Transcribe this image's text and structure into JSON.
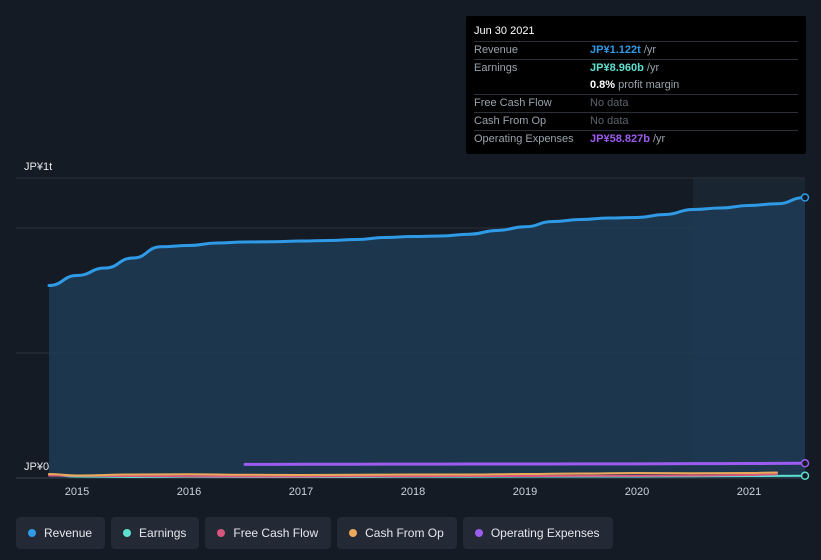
{
  "tooltip": {
    "date": "Jun 30 2021",
    "rows": [
      {
        "label": "Revenue",
        "value": "JP¥1.122t",
        "unit": " /yr",
        "color": "#2f9ae6"
      },
      {
        "label": "Earnings",
        "value": "JP¥8.960b",
        "unit": " /yr",
        "color": "#5ee0cf"
      },
      {
        "label": "",
        "value": "0.8%",
        "unit": " profit margin",
        "color": "#ffffff"
      },
      {
        "label": "Free Cash Flow",
        "value": "No data",
        "unit": "",
        "color": "#5c636c"
      },
      {
        "label": "Cash From Op",
        "value": "No data",
        "unit": "",
        "color": "#5c636c"
      },
      {
        "label": "Operating Expenses",
        "value": "JP¥58.827b",
        "unit": " /yr",
        "color": "#9d5cf0"
      }
    ]
  },
  "legend": [
    {
      "label": "Revenue",
      "color": "#2f9ae6"
    },
    {
      "label": "Earnings",
      "color": "#5ee0cf"
    },
    {
      "label": "Free Cash Flow",
      "color": "#d8567e"
    },
    {
      "label": "Cash From Op",
      "color": "#e8a95a"
    },
    {
      "label": "Operating Expenses",
      "color": "#9d5cf0"
    }
  ],
  "chart_data": {
    "type": "area",
    "ytick_labels": [
      "JP¥1t",
      "JP¥0"
    ],
    "ylim": [
      0,
      1.2
    ],
    "xlim": [
      2014.6,
      2021.5
    ],
    "x_ticks": [
      2015,
      2016,
      2017,
      2018,
      2019,
      2020,
      2021
    ],
    "highlight_from": 2020.5,
    "grid": true,
    "legend_position": "bottom",
    "series": [
      {
        "name": "Revenue",
        "color": "#2f9ae6",
        "fill": true,
        "x": [
          2014.75,
          2015.0,
          2015.25,
          2015.5,
          2015.75,
          2016.0,
          2016.25,
          2016.5,
          2016.75,
          2017.0,
          2017.25,
          2017.5,
          2017.75,
          2018.0,
          2018.25,
          2018.5,
          2018.75,
          2019.0,
          2019.25,
          2019.5,
          2019.75,
          2020.0,
          2020.25,
          2020.5,
          2020.75,
          2021.0,
          2021.25,
          2021.5
        ],
        "y": [
          0.77,
          0.81,
          0.84,
          0.88,
          0.925,
          0.93,
          0.94,
          0.944,
          0.945,
          0.948,
          0.95,
          0.954,
          0.962,
          0.966,
          0.968,
          0.975,
          0.99,
          1.005,
          1.026,
          1.034,
          1.04,
          1.042,
          1.054,
          1.074,
          1.08,
          1.09,
          1.097,
          1.122
        ]
      },
      {
        "name": "Earnings",
        "color": "#5ee0cf",
        "x": [
          2014.75,
          2015.0,
          2015.5,
          2016.0,
          2016.5,
          2017.0,
          2017.5,
          2018.0,
          2018.5,
          2019.0,
          2019.5,
          2020.0,
          2020.5,
          2021.0,
          2021.5
        ],
        "y": [
          0.012,
          0.006,
          0.004,
          0.005,
          0.004,
          0.004,
          0.004,
          0.005,
          0.005,
          0.006,
          0.006,
          0.006,
          0.007,
          0.008,
          0.00896
        ]
      },
      {
        "name": "Free Cash Flow",
        "color": "#d8567e",
        "x": [
          2014.75,
          2015.5,
          2016.0,
          2016.5,
          2017.0,
          2017.5,
          2018.0,
          2018.5,
          2019.0,
          2019.5,
          2020.0,
          2020.5,
          2021.0,
          2021.25
        ],
        "y": [
          0.01,
          0.008,
          0.007,
          0.006,
          0.006,
          0.007,
          0.007,
          0.008,
          0.008,
          0.009,
          0.009,
          0.01,
          0.012,
          0.015
        ]
      },
      {
        "name": "Cash From Op",
        "color": "#e8a95a",
        "x": [
          2014.75,
          2015.0,
          2015.5,
          2016.0,
          2016.5,
          2017.0,
          2017.5,
          2018.0,
          2018.5,
          2019.0,
          2019.5,
          2020.0,
          2020.5,
          2021.0,
          2021.25
        ],
        "y": [
          0.016,
          0.01,
          0.014,
          0.015,
          0.013,
          0.012,
          0.013,
          0.014,
          0.014,
          0.016,
          0.018,
          0.02,
          0.019,
          0.02,
          0.022
        ]
      },
      {
        "name": "Operating Expenses",
        "color": "#9d5cf0",
        "x": [
          2016.5,
          2017.0,
          2017.5,
          2018.0,
          2018.5,
          2019.0,
          2019.5,
          2020.0,
          2020.5,
          2021.0,
          2021.5
        ],
        "y": [
          0.0545,
          0.0548,
          0.0552,
          0.0555,
          0.0558,
          0.056,
          0.0563,
          0.0567,
          0.0575,
          0.058,
          0.0588
        ]
      }
    ]
  }
}
